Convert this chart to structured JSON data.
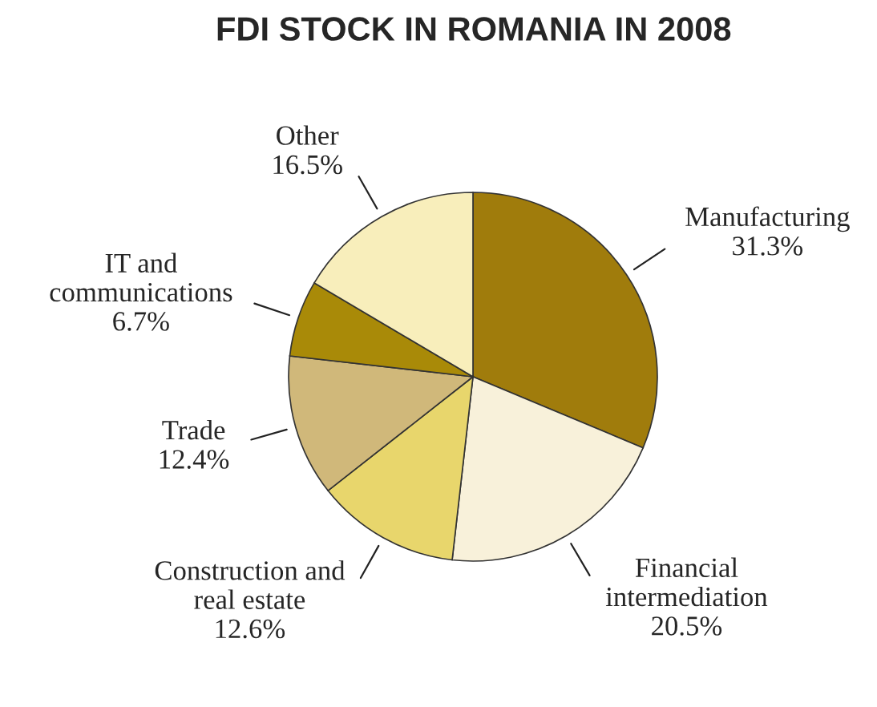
{
  "chart_data": {
    "type": "pie",
    "title": "FDI STOCK IN ROMANIA IN 2008",
    "categories": [
      "Manufacturing",
      "Financial\nintermediation",
      "Construction and\nreal estate",
      "Trade",
      "IT and\ncommunications",
      "Other"
    ],
    "values": [
      31.3,
      20.5,
      12.6,
      12.4,
      6.7,
      16.5
    ],
    "value_labels": [
      "31.3%",
      "20.5%",
      "12.6%",
      "12.4%",
      "6.7%",
      "16.5%"
    ],
    "colors": [
      "#a07c0c",
      "#f8f1da",
      "#e8d66c",
      "#d0b87a",
      "#a98a08",
      "#f8eebb"
    ],
    "legend": false
  }
}
